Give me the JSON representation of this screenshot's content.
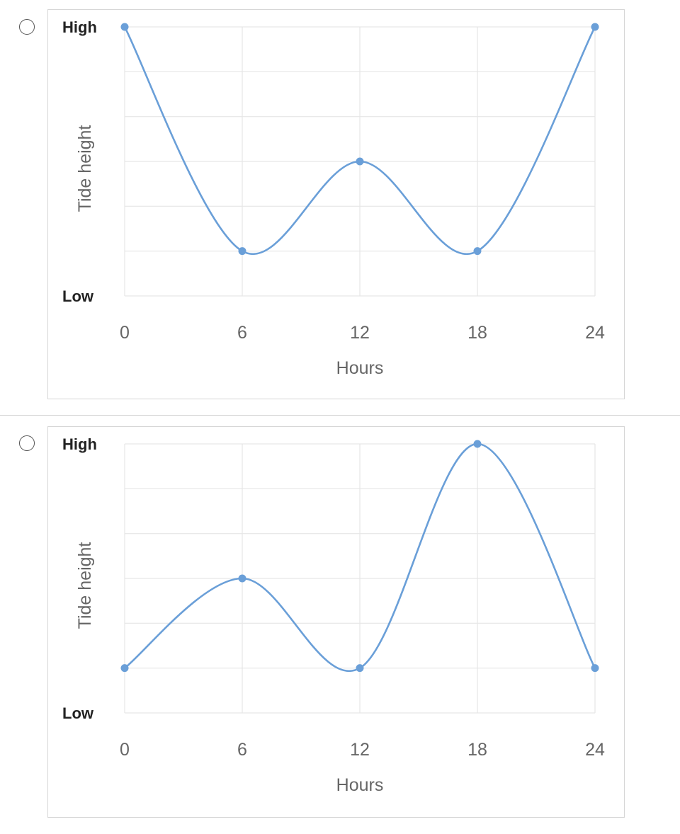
{
  "options": [
    {
      "chart_data": {
        "type": "line",
        "x": [
          0,
          6,
          12,
          18,
          24
        ],
        "values": [
          6,
          1,
          3,
          1,
          6
        ],
        "ylim": [
          0,
          6
        ],
        "xlim": [
          0,
          24
        ],
        "ylabel": "Tide height",
        "xlabel": "Hours",
        "y_tick_labels": {
          "top": "High",
          "bottom": "Low"
        },
        "x_tick_labels": [
          "0",
          "6",
          "12",
          "18",
          "24"
        ],
        "grid": true,
        "smooth": true,
        "line_color": "#6a9fd8"
      }
    },
    {
      "chart_data": {
        "type": "line",
        "x": [
          0,
          6,
          12,
          18,
          24
        ],
        "values": [
          1,
          3,
          1,
          6,
          1
        ],
        "ylim": [
          0,
          6
        ],
        "xlim": [
          0,
          24
        ],
        "ylabel": "Tide height",
        "xlabel": "Hours",
        "y_tick_labels": {
          "top": "High",
          "bottom": "Low"
        },
        "x_tick_labels": [
          "0",
          "6",
          "12",
          "18",
          "24"
        ],
        "grid": true,
        "smooth": true,
        "line_color": "#6a9fd8"
      }
    }
  ]
}
